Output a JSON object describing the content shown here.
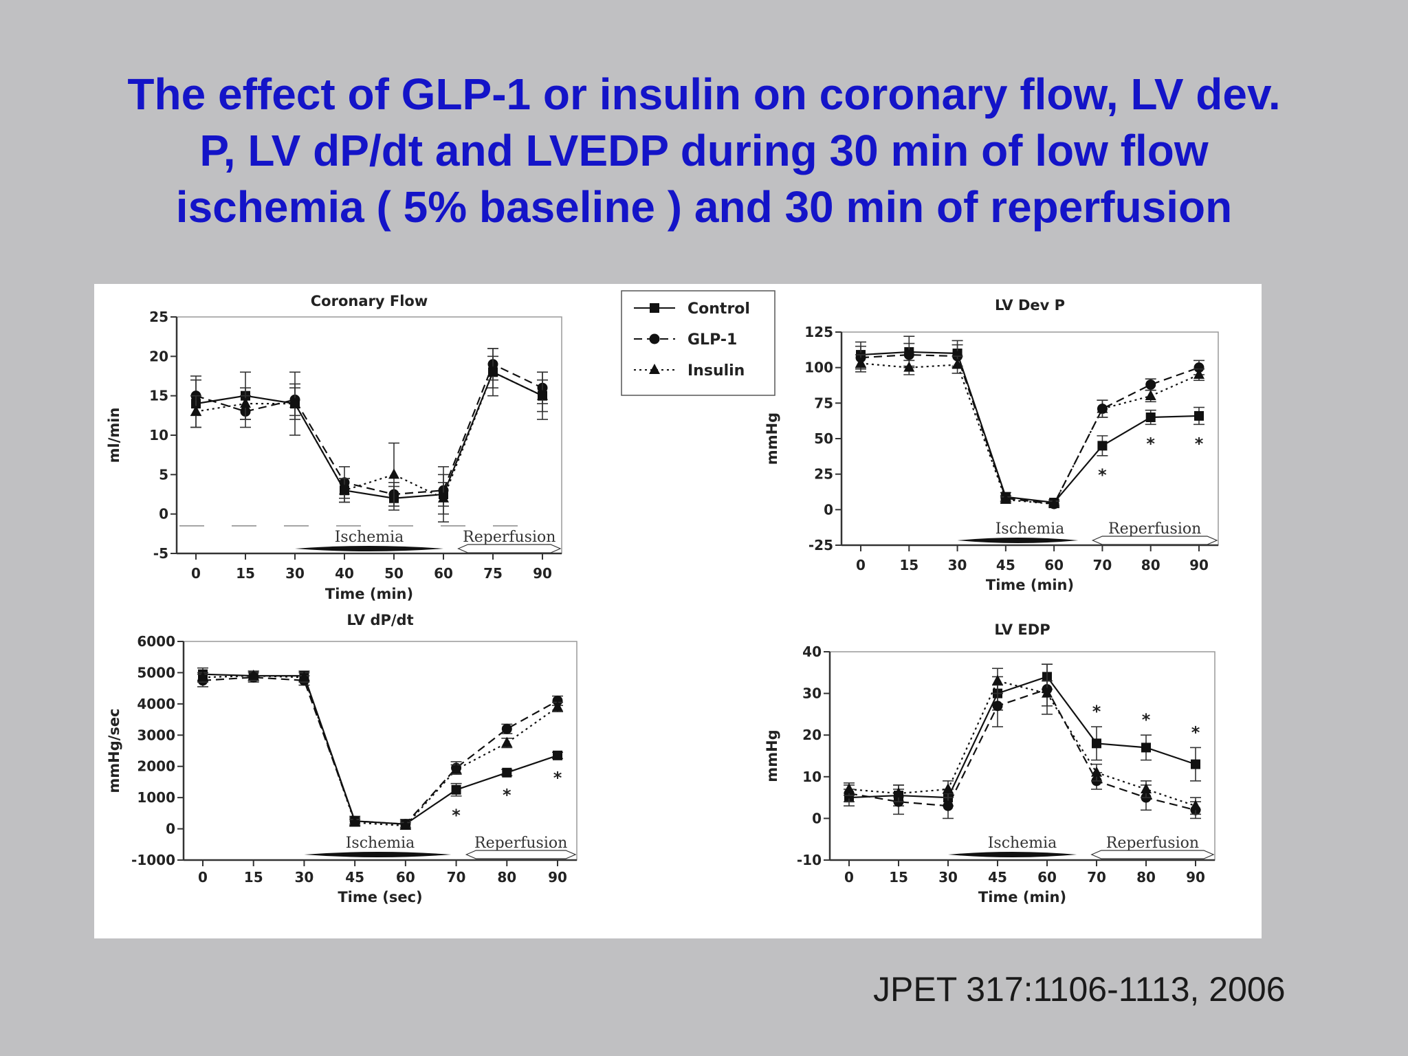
{
  "title_lines": [
    "The effect of GLP-1 or insulin on coronary flow, LV dev.",
    "P, LV dP/dt and LVEDP during 30 min of low flow",
    "ischemia ( 5% baseline ) and 30 min of reperfusion"
  ],
  "citation": "JPET 317:1106-1113, 2006",
  "legend": [
    {
      "label": "Control",
      "marker": "square",
      "dash": "solid"
    },
    {
      "label": "GLP-1",
      "marker": "circle",
      "dash": "dashed"
    },
    {
      "label": "Insulin",
      "marker": "triangle",
      "dash": "dotted"
    }
  ],
  "chart_data": [
    {
      "type": "line",
      "title": "Coronary Flow",
      "xlabel": "Time (min)",
      "ylabel": "ml/min",
      "categories": [
        "0",
        "15",
        "30",
        "40",
        "50",
        "60",
        "75",
        "90"
      ],
      "ylim": [
        -5,
        25
      ],
      "yticks": [
        -5,
        0,
        5,
        10,
        15,
        20,
        25
      ],
      "phases": [
        "Ischemia",
        "Reperfusion"
      ],
      "baseline_dashed": -1.5,
      "series": [
        {
          "name": "Control",
          "values": [
            14,
            15,
            14,
            3,
            2,
            2.5,
            18,
            15
          ],
          "err": [
            3,
            3,
            4,
            1.5,
            1.5,
            3.5,
            3,
            3
          ]
        },
        {
          "name": "GLP-1",
          "values": [
            15,
            13,
            14.5,
            4,
            2.5,
            3,
            19,
            16
          ],
          "err": [
            2.5,
            2,
            2,
            2,
            1.5,
            2,
            2,
            2
          ]
        },
        {
          "name": "Insulin",
          "values": [
            13,
            14,
            14,
            3,
            5,
            2,
            18,
            15
          ],
          "err": [
            2,
            2,
            2,
            1.5,
            4,
            2,
            2,
            2
          ]
        }
      ],
      "significance": []
    },
    {
      "type": "line",
      "title": "LV Dev P",
      "xlabel": "Time (min)",
      "ylabel": "mmHg",
      "categories": [
        "0",
        "15",
        "30",
        "45",
        "60",
        "70",
        "80",
        "90"
      ],
      "ylim": [
        -25,
        125
      ],
      "yticks": [
        -25,
        0,
        25,
        50,
        75,
        100,
        125
      ],
      "phases": [
        "Ischemia",
        "Reperfusion"
      ],
      "series": [
        {
          "name": "Control",
          "values": [
            109,
            111,
            110,
            9,
            5,
            45,
            65,
            66
          ],
          "err": [
            9,
            11,
            9,
            3,
            2,
            7,
            5,
            6
          ]
        },
        {
          "name": "GLP-1",
          "values": [
            107,
            109,
            108,
            8,
            4,
            71,
            88,
            100
          ],
          "err": [
            8,
            8,
            8,
            2,
            2,
            6,
            4,
            5
          ]
        },
        {
          "name": "Insulin",
          "values": [
            103,
            100,
            102,
            7,
            4,
            71,
            80,
            95
          ],
          "err": [
            6,
            5,
            6,
            2,
            2,
            6,
            4,
            4
          ]
        }
      ],
      "significance": [
        {
          "x": "70",
          "label": "*"
        },
        {
          "x": "80",
          "label": "*"
        },
        {
          "x": "90",
          "label": "*"
        }
      ]
    },
    {
      "type": "line",
      "title": "LV dP/dt",
      "xlabel": "Time (sec)",
      "ylabel": "mmHg/sec",
      "categories": [
        "0",
        "15",
        "30",
        "45",
        "60",
        "70",
        "80",
        "90"
      ],
      "ylim": [
        -1000,
        6000
      ],
      "yticks": [
        -1000,
        0,
        1000,
        2000,
        3000,
        4000,
        5000,
        6000
      ],
      "phases": [
        "Ischemia",
        "Reperfusion"
      ],
      "series": [
        {
          "name": "Control",
          "values": [
            4950,
            4900,
            4900,
            250,
            150,
            1250,
            1800,
            2350
          ],
          "err": [
            200,
            150,
            150,
            150,
            150,
            200,
            100,
            100
          ]
        },
        {
          "name": "GLP-1",
          "values": [
            4750,
            4850,
            4750,
            250,
            150,
            1950,
            3200,
            4100
          ],
          "err": [
            200,
            150,
            150,
            100,
            100,
            200,
            150,
            150
          ]
        },
        {
          "name": "Insulin",
          "values": [
            4850,
            4900,
            4850,
            200,
            100,
            1900,
            2750,
            3900
          ],
          "err": [
            150,
            150,
            150,
            100,
            100,
            150,
            150,
            150
          ]
        }
      ],
      "significance": [
        {
          "x": "70",
          "label": "*"
        },
        {
          "x": "80",
          "label": "*"
        },
        {
          "x": "90",
          "label": "*"
        }
      ]
    },
    {
      "type": "line",
      "title": "LV EDP",
      "xlabel": "Time (min)",
      "ylabel": "mmHg",
      "categories": [
        "0",
        "15",
        "30",
        "45",
        "60",
        "70",
        "80",
        "90"
      ],
      "ylim": [
        -10,
        40
      ],
      "yticks": [
        -10,
        0,
        10,
        20,
        30,
        40
      ],
      "phases": [
        "Ischemia",
        "Reperfusion"
      ],
      "series": [
        {
          "name": "Control",
          "values": [
            5,
            5.5,
            5,
            30,
            34,
            18,
            17,
            13
          ],
          "err": [
            2,
            2.5,
            2,
            4,
            3,
            4,
            3,
            4
          ]
        },
        {
          "name": "GLP-1",
          "values": [
            6,
            4,
            3,
            27,
            31,
            9,
            5,
            2
          ],
          "err": [
            2,
            3,
            3,
            5,
            6,
            2,
            3,
            2
          ]
        },
        {
          "name": "Insulin",
          "values": [
            7,
            6,
            7,
            33,
            30,
            11,
            7,
            3
          ],
          "err": [
            1.5,
            2,
            2,
            3,
            3,
            2,
            2,
            2
          ]
        }
      ],
      "significance": [
        {
          "x": "70",
          "label": "*"
        },
        {
          "x": "80",
          "label": "*"
        },
        {
          "x": "90",
          "label": "*"
        }
      ]
    }
  ]
}
